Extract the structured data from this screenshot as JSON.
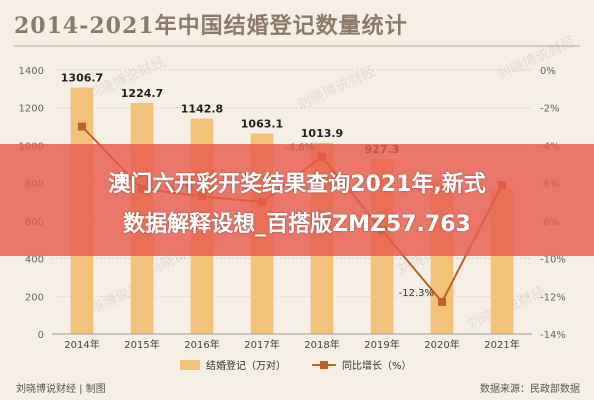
{
  "chart_data": {
    "type": "bar",
    "title": "2014-2021年中国结婚登记数量统计",
    "categories": [
      "2014年",
      "2015年",
      "2016年",
      "2017年",
      "2018年",
      "2019年",
      "2020年",
      "2021年"
    ],
    "series": [
      {
        "name": "结婚登记（万对）",
        "type": "bar",
        "color": "#f3c27a",
        "values": [
          1306.7,
          1224.7,
          1142.8,
          1063.1,
          1013.9,
          927.3,
          814.3,
          764.3
        ],
        "labels": [
          "1306.7",
          "1224.7",
          "1142.8",
          "1063.1",
          "1013.9",
          "927.3",
          "",
          ""
        ]
      },
      {
        "name": "同比增长（%）",
        "type": "line",
        "color": "#c0612a",
        "values": [
          -3.0,
          -6.3,
          -6.7,
          -7.0,
          -4.6,
          -8.5,
          -12.3,
          -6.1
        ],
        "labels": [
          "",
          "",
          "-6.7%",
          "",
          "-4.6%",
          "",
          "-12.3%",
          ""
        ]
      }
    ],
    "y_left": {
      "ylim": [
        0,
        1400
      ],
      "ticks": [
        "0",
        "200",
        "400",
        "600",
        "800",
        "1000",
        "1200",
        "1400"
      ]
    },
    "y_right": {
      "ylim": [
        -14,
        0
      ],
      "ticks": [
        "-14%",
        "-12%",
        "-10%",
        "-8%",
        "-6%",
        "-4%",
        "-2%",
        "0%"
      ]
    },
    "grid": true,
    "legend": "bottom"
  },
  "banner": {
    "line1": "澳门六开彩开奖结果查询2021年,新式",
    "line2": "数据解释设想_百搭版ZMZ57.763"
  },
  "footer": {
    "left": "刘晓博说财经 | 制图",
    "right": "数据来源：民政部数据"
  },
  "watermark": "刘晓博说财经"
}
